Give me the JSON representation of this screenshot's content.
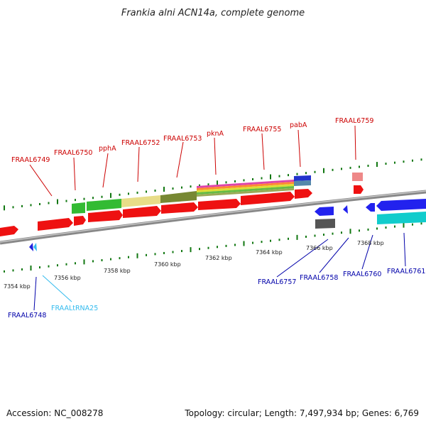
{
  "title": "Frankia alni ACN14a, complete genome",
  "footer": {
    "accession": "Accession: NC_008278",
    "summary": "Topology: circular; Length: 7,497,934 bp; Genes: 6,769"
  },
  "colors": {
    "gene_arrow": "#ee1111",
    "top_label": "#cc0000",
    "bottom_label": "#0000aa",
    "trna_label": "#33bbee",
    "backbone": "#888888",
    "ticks": "#117711"
  },
  "scale_labels": [
    "7354 kbp",
    "7356 kbp",
    "7358 kbp",
    "7360 kbp",
    "7362 kbp",
    "7364 kbp",
    "7366 kbp",
    "7368 kbp"
  ],
  "top_genes": [
    "FRAAL6749",
    "FRAAL6750",
    "pphA",
    "FRAAL6752",
    "FRAAL6753",
    "pknA",
    "FRAAL6755",
    "pabA",
    "FRAAL6759"
  ],
  "bottom_genes": [
    "FRAAL6748",
    "FRAALtRNA25",
    "FRAAL6757",
    "FRAAL6758",
    "FRAAL6760",
    "FRAAL6761"
  ]
}
